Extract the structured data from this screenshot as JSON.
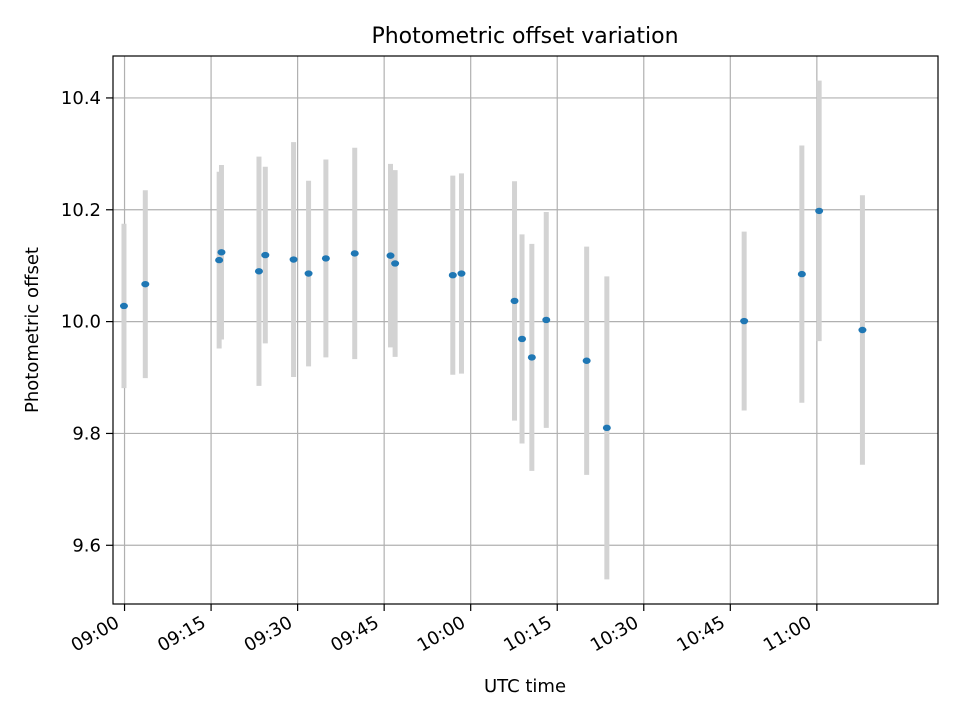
{
  "chart_data": {
    "type": "scatter",
    "title": "Photometric offset variation",
    "xlabel": "UTC time",
    "ylabel": "Photometric offset",
    "xlim": [
      "08:58",
      "11:21"
    ],
    "ylim": [
      9.495,
      10.475
    ],
    "grid": true,
    "x_ticks": [
      "09:00",
      "09:15",
      "09:30",
      "09:45",
      "10:00",
      "10:15",
      "10:30",
      "10:45",
      "11:00"
    ],
    "y_ticks": [
      9.6,
      9.8,
      10.0,
      10.2,
      10.4
    ],
    "y_tick_labels": [
      "9.6",
      "9.8",
      "10.0",
      "10.2",
      "10.4"
    ],
    "series": [
      {
        "marker_color": "#1f77b4",
        "errorbar_color": "#d3d3d3",
        "points": [
          {
            "x": "08:59:54",
            "y": 10.028,
            "err": 0.147
          },
          {
            "x": "09:03:36",
            "y": 10.067,
            "err": 0.168
          },
          {
            "x": "09:16:24",
            "y": 10.11,
            "err": 0.158
          },
          {
            "x": "09:16:48",
            "y": 10.124,
            "err": 0.156
          },
          {
            "x": "09:23:18",
            "y": 10.09,
            "err": 0.205
          },
          {
            "x": "09:24:24",
            "y": 10.119,
            "err": 0.158
          },
          {
            "x": "09:29:18",
            "y": 10.111,
            "err": 0.21
          },
          {
            "x": "09:31:54",
            "y": 10.086,
            "err": 0.166
          },
          {
            "x": "09:34:54",
            "y": 10.113,
            "err": 0.177
          },
          {
            "x": "09:39:54",
            "y": 10.122,
            "err": 0.189
          },
          {
            "x": "09:46:06",
            "y": 10.118,
            "err": 0.164
          },
          {
            "x": "09:46:54",
            "y": 10.104,
            "err": 0.167
          },
          {
            "x": "09:56:54",
            "y": 10.083,
            "err": 0.178
          },
          {
            "x": "09:58:24",
            "y": 10.086,
            "err": 0.179
          },
          {
            "x": "10:07:36",
            "y": 10.037,
            "err": 0.214
          },
          {
            "x": "10:08:54",
            "y": 9.969,
            "err": 0.187
          },
          {
            "x": "10:10:36",
            "y": 9.936,
            "err": 0.203
          },
          {
            "x": "10:13:06",
            "y": 10.003,
            "err": 0.193
          },
          {
            "x": "10:20:06",
            "y": 9.93,
            "err": 0.204
          },
          {
            "x": "10:23:36",
            "y": 9.81,
            "err": 0.271
          },
          {
            "x": "10:47:24",
            "y": 10.001,
            "err": 0.16
          },
          {
            "x": "10:57:24",
            "y": 10.085,
            "err": 0.23
          },
          {
            "x": "11:00:24",
            "y": 10.198,
            "err": 0.233
          },
          {
            "x": "11:07:54",
            "y": 9.985,
            "err": 0.241
          }
        ]
      }
    ]
  }
}
